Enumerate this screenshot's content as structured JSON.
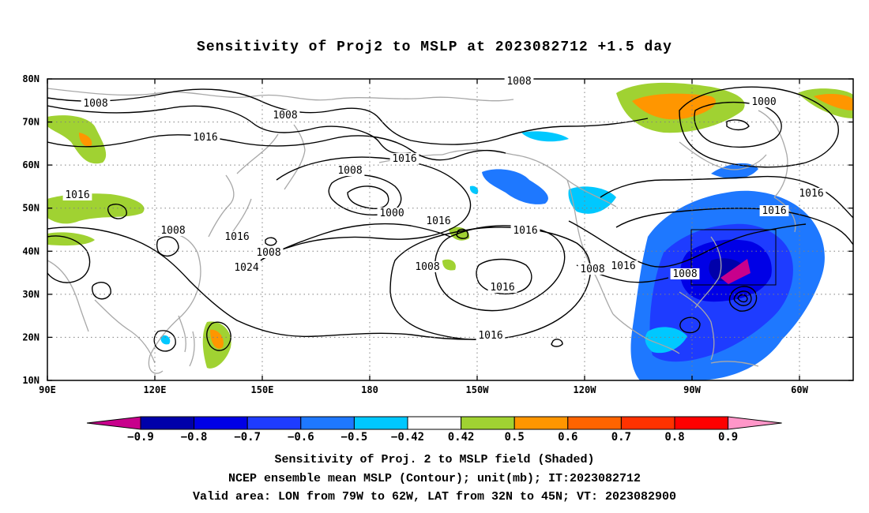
{
  "title": "Sensitivity of Proj2 to MSLP at 2023082712 +1.5 day",
  "lat_labels": [
    "80N",
    "70N",
    "60N",
    "50N",
    "40N",
    "30N",
    "20N",
    "10N"
  ],
  "lon_labels": [
    "90E",
    "120E",
    "150E",
    "180",
    "150W",
    "120W",
    "90W",
    "60W"
  ],
  "contour_labels": [
    {
      "text": "1008"
    },
    {
      "text": "1008"
    },
    {
      "text": "1008"
    },
    {
      "text": "1000"
    },
    {
      "text": "1016"
    },
    {
      "text": "1016"
    },
    {
      "text": "1008"
    },
    {
      "text": "1016"
    },
    {
      "text": "1000"
    },
    {
      "text": "1016"
    },
    {
      "text": "1016"
    },
    {
      "text": "1008"
    },
    {
      "text": "1016"
    },
    {
      "text": "1008"
    },
    {
      "text": "1016"
    },
    {
      "text": "1016"
    },
    {
      "text": "1024"
    },
    {
      "text": "1008"
    },
    {
      "text": "1016"
    },
    {
      "text": "1008"
    },
    {
      "text": "1016"
    },
    {
      "text": "1008"
    },
    {
      "text": "1016"
    }
  ],
  "colorbar": {
    "levels": [
      "-0.9",
      "-0.8",
      "-0.7",
      "-0.6",
      "-0.5",
      "-0.42",
      "0.42",
      "0.5",
      "0.6",
      "0.7",
      "0.8",
      "0.9"
    ],
    "colors": [
      "#c8008c",
      "#0000aa",
      "#0000e6",
      "#1e3cff",
      "#1e78ff",
      "#00c8ff",
      "#ffffff",
      "#a0d232",
      "#ff9600",
      "#ff6400",
      "#ff3200",
      "#ff0000",
      "#ff96c8"
    ]
  },
  "captions": {
    "line1": "Sensitivity of Proj. 2 to MSLP field (Shaded)",
    "line2": "NCEP ensemble mean MSLP (Contour); unit(mb); IT:2023082712",
    "line3": "Valid area: LON from 79W to 62W, LAT from 32N to 45N; VT: 2023082900"
  },
  "valid_area": {
    "lon_from": "79W",
    "lon_to": "62W",
    "lat_from": "32N",
    "lat_to": "45N"
  }
}
